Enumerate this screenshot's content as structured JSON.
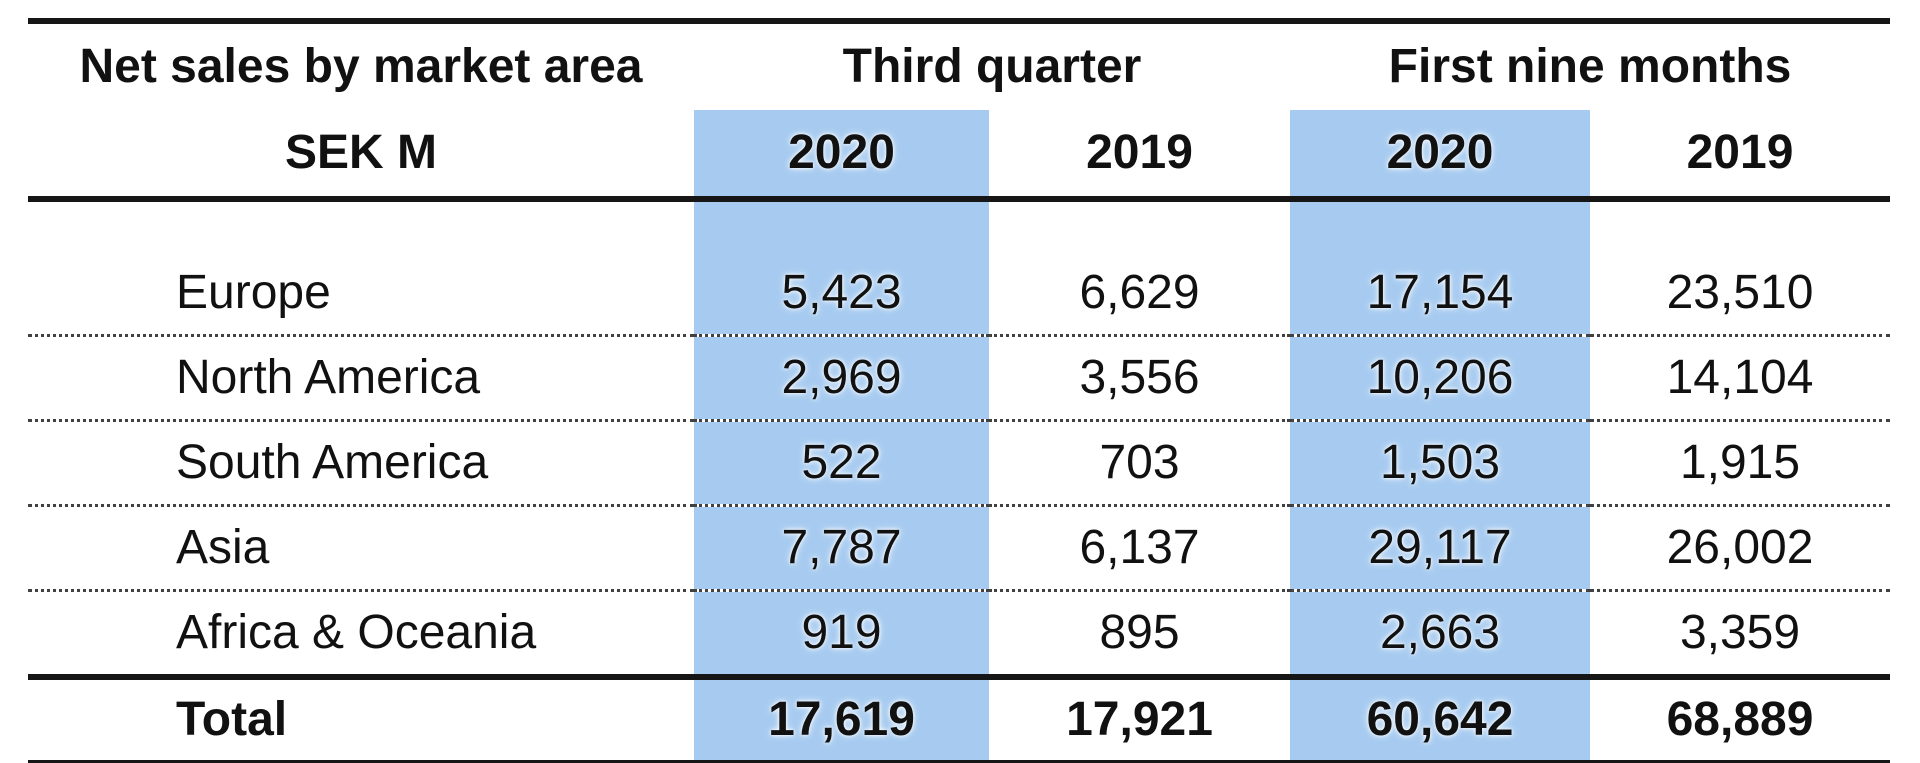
{
  "table": {
    "title": "Net sales by market area",
    "subtitle": "SEK M",
    "groups": [
      {
        "label": "Third quarter"
      },
      {
        "label": "First nine months"
      }
    ],
    "year_cols": [
      "2020",
      "2019",
      "2020",
      "2019"
    ],
    "rows": [
      {
        "label": "Europe",
        "values": [
          "5,423",
          "6,629",
          "17,154",
          "23,510"
        ]
      },
      {
        "label": "North America",
        "values": [
          "2,969",
          "3,556",
          "10,206",
          "14,104"
        ]
      },
      {
        "label": "South America",
        "values": [
          "522",
          "703",
          "1,503",
          "1,915"
        ]
      },
      {
        "label": "Asia",
        "values": [
          "7,787",
          "6,137",
          "29,117",
          "26,002"
        ]
      },
      {
        "label": "Africa & Oceania",
        "values": [
          "919",
          "895",
          "2,663",
          "3,359"
        ]
      }
    ],
    "total": {
      "label": "Total",
      "values": [
        "17,619",
        "17,921",
        "60,642",
        "68,889"
      ]
    },
    "highlight_color": "#A7CBF0"
  }
}
